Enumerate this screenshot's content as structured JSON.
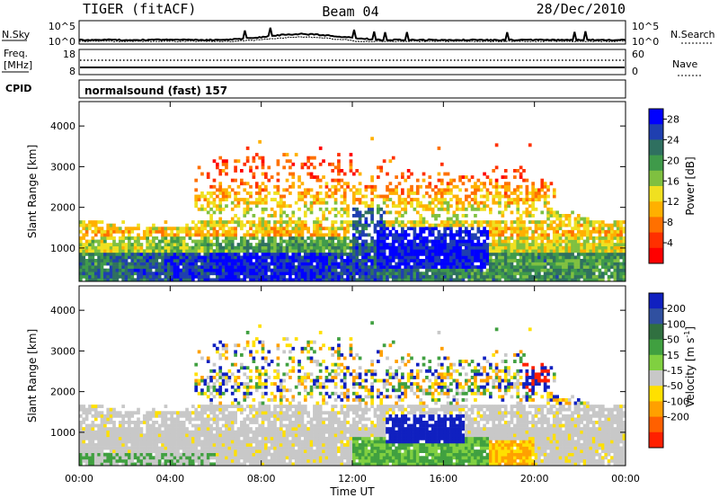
{
  "header": {
    "title": "TIGER (fitACF)",
    "beam": "Beam 04",
    "date": "28/Dec/2010"
  },
  "top_panels": {
    "nsky_label": "N.Sky",
    "nsky_ticks": [
      "10^5",
      "10^0"
    ],
    "nsearch_label": "N.Search",
    "nsearch_ticks": [
      "10^5",
      "10^0"
    ],
    "freq_label_line1": "Freq.",
    "freq_label_line2": "[MHz]",
    "freq_ticks": [
      "18",
      "8"
    ],
    "nave_label": "Nave",
    "nave_ticks": [
      "60",
      "0"
    ],
    "cpid_label": "CPID",
    "cpid_text": "normalsound (fast) 157"
  },
  "chart_data": [
    {
      "type": "heatmap",
      "quantity": "Power",
      "ylabel": "Slant Range [km]",
      "xlabel": "",
      "x_ticks": [
        "00:00",
        "04:00",
        "08:00",
        "12:00",
        "16:00",
        "20:00",
        "00:00"
      ],
      "y_ticks": [
        1000,
        2000,
        3000,
        4000
      ],
      "xlim": [
        0,
        24
      ],
      "ylim": [
        180,
        4600
      ],
      "colorbar": {
        "label": "Power [dB]",
        "ticks": [
          4,
          8,
          12,
          16,
          20,
          24,
          28
        ],
        "range": [
          0,
          30
        ],
        "colors": [
          "#0000ff",
          "#1f3fb0",
          "#2f7060",
          "#3f9a4a",
          "#7fc040",
          "#f0e020",
          "#ffb000",
          "#ff7000",
          "#ff3000",
          "#ff0000"
        ]
      }
    },
    {
      "type": "heatmap",
      "quantity": "Velocity",
      "ylabel": "Slant Range [km]",
      "xlabel": "Time UT",
      "x_ticks": [
        "00:00",
        "04:00",
        "08:00",
        "12:00",
        "16:00",
        "20:00",
        "00:00"
      ],
      "y_ticks": [
        1000,
        2000,
        3000,
        4000
      ],
      "xlim": [
        0,
        24
      ],
      "ylim": [
        180,
        4600
      ],
      "colorbar": {
        "label_main": "Velocity [m s",
        "label_sup": "-1",
        "label_end": "]",
        "ticks": [
          200,
          100,
          50,
          15,
          -15,
          -50,
          -100,
          -200
        ],
        "colors": [
          "#1020c0",
          "#3050a0",
          "#307040",
          "#40a040",
          "#80d040",
          "#c8c8c8",
          "#ffe000",
          "#ffa000",
          "#ff6000",
          "#ff2000"
        ]
      }
    }
  ]
}
